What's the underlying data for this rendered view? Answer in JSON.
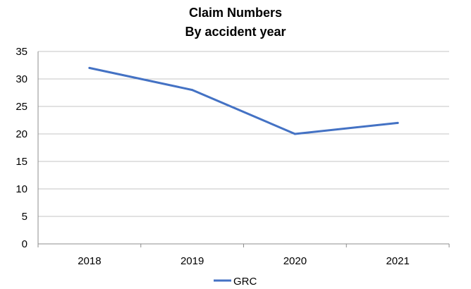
{
  "chart_data": {
    "type": "line",
    "title": "Claim Numbers",
    "subtitle": "By accident year",
    "xlabel": "",
    "ylabel": "",
    "categories": [
      "2018",
      "2019",
      "2020",
      "2021"
    ],
    "series": [
      {
        "name": "GRC",
        "values": [
          32,
          28,
          20,
          22
        ],
        "color": "#4472C4"
      }
    ],
    "ylim": [
      0,
      35
    ],
    "yticks": [
      0,
      5,
      10,
      15,
      20,
      25,
      30,
      35
    ],
    "grid": true,
    "legend": "bottom"
  }
}
